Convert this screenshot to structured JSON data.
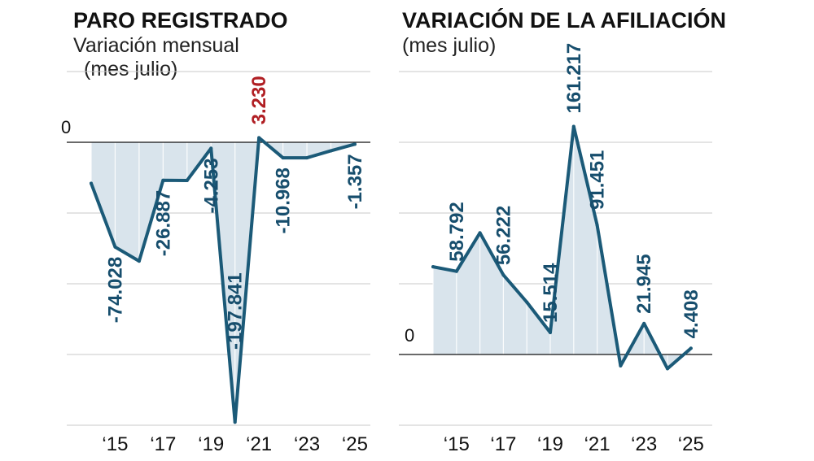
{
  "chart_data": [
    {
      "type": "area",
      "title": "PARO REGISTRADO",
      "subtitle": "Variación mensual",
      "subtitle2": "(mes julio)",
      "x": [
        2014,
        2015,
        2016,
        2017,
        2018,
        2019,
        2020,
        2021,
        2022,
        2023,
        2024,
        2025
      ],
      "values": [
        -29000,
        -74028,
        -84000,
        -26887,
        -27000,
        -4253,
        -197841,
        3230,
        -10968,
        -10968,
        -6000,
        -1357
      ],
      "ylim": [
        -200000,
        0
      ],
      "zero_label": "0",
      "tick_labels": [
        "‘15",
        "‘17",
        "‘19",
        "‘21",
        "‘23",
        "‘25"
      ],
      "tick_years": [
        2015,
        2017,
        2019,
        2021,
        2023,
        2025
      ],
      "data_labels": [
        {
          "year": 2015,
          "text": "-74.028",
          "color": "#174e6d"
        },
        {
          "year": 2017,
          "text": "-26.887",
          "color": "#174e6d"
        },
        {
          "year": 2019,
          "text": "-4.253",
          "color": "#174e6d"
        },
        {
          "year": 2020,
          "text": "-197.841",
          "color": "#174e6d"
        },
        {
          "year": 2021,
          "text": "3.230",
          "color": "#b01e23"
        },
        {
          "year": 2022,
          "text": "-10.968",
          "color": "#174e6d"
        },
        {
          "year": 2025,
          "text": "-1.357",
          "color": "#174e6d"
        }
      ]
    },
    {
      "type": "area",
      "title": "VARIACIÓN DE LA AFILIACIÓN",
      "subtitle": "(mes julio)",
      "x": [
        2014,
        2015,
        2016,
        2017,
        2018,
        2019,
        2020,
        2021,
        2022,
        2023,
        2024,
        2025
      ],
      "values": [
        62000,
        58792,
        86000,
        56222,
        37000,
        15514,
        161217,
        91451,
        -8000,
        21945,
        -10000,
        4408
      ],
      "ylim": [
        0,
        200000
      ],
      "zero_label": "0",
      "tick_labels": [
        "‘15",
        "‘17",
        "‘19",
        "‘21",
        "‘23",
        "‘25"
      ],
      "tick_years": [
        2015,
        2017,
        2019,
        2021,
        2023,
        2025
      ],
      "data_labels": [
        {
          "year": 2015,
          "text": "58.792",
          "color": "#174e6d"
        },
        {
          "year": 2017,
          "text": "56.222",
          "color": "#174e6d"
        },
        {
          "year": 2019,
          "text": "15.514",
          "color": "#174e6d"
        },
        {
          "year": 2020,
          "text": "161.217",
          "color": "#174e6d"
        },
        {
          "year": 2021,
          "text": "91.451",
          "color": "#174e6d"
        },
        {
          "year": 2023,
          "text": "21.945",
          "color": "#174e6d"
        },
        {
          "year": 2025,
          "text": "4.408",
          "color": "#174e6d"
        }
      ]
    }
  ],
  "colors": {
    "line": "#1b5a78",
    "fill": "#d9e4ec",
    "grid": "#c8c8c8",
    "label": "#174e6d",
    "highlight": "#b01e23"
  }
}
